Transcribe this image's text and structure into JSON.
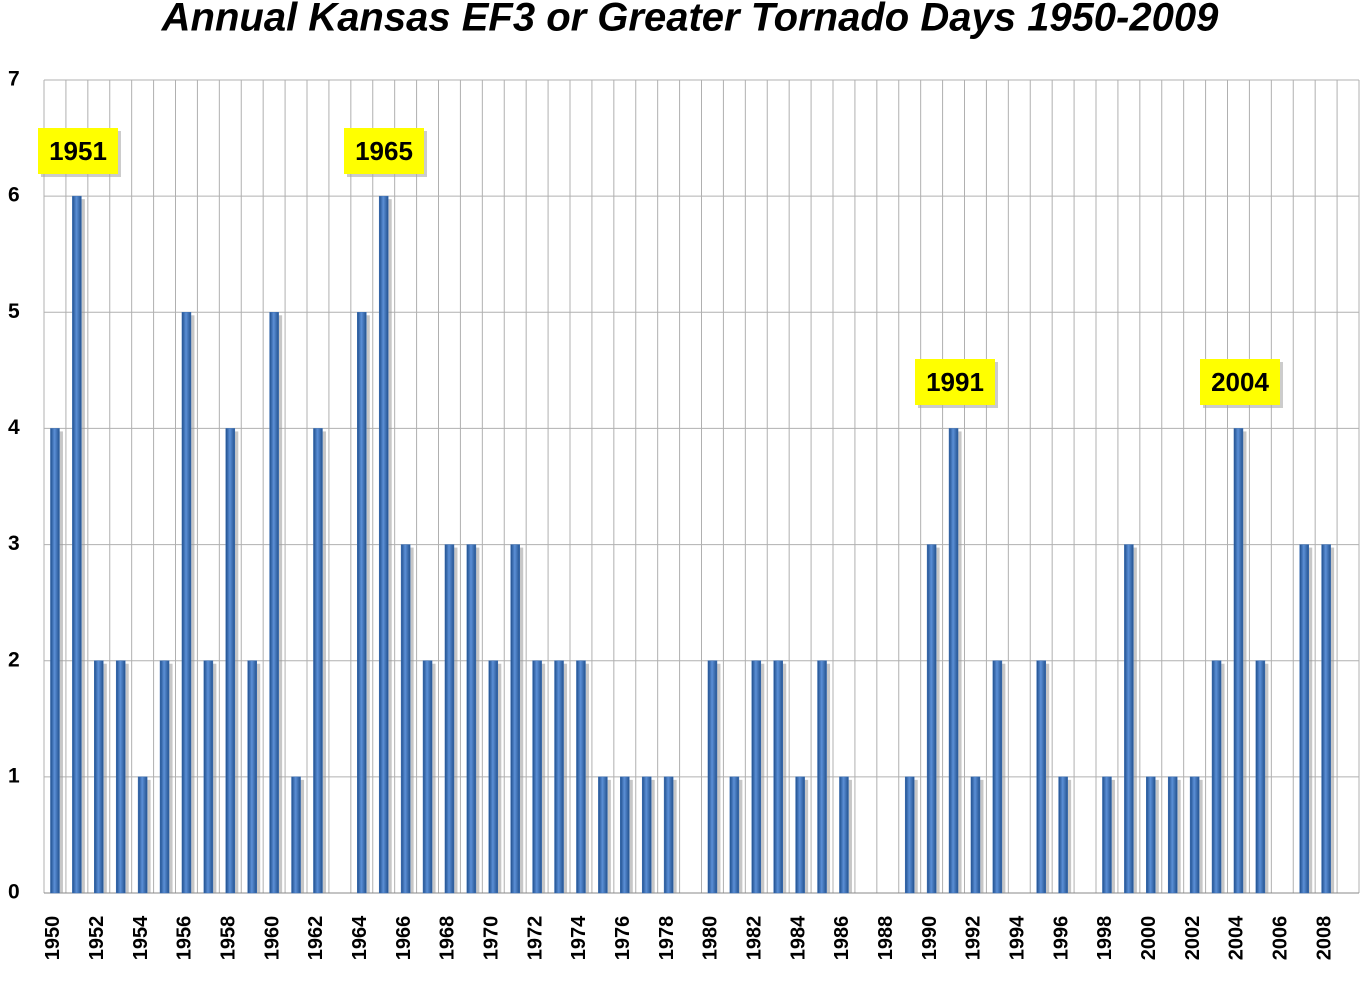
{
  "chart_data": {
    "type": "bar",
    "title": "Annual Kansas EF3 or Greater Tornado Days 1950-2009",
    "categories": [
      "1950",
      null,
      "1952",
      null,
      "1954",
      null,
      "1956",
      null,
      "1958",
      null,
      "1960",
      null,
      "1962",
      null,
      "1964",
      null,
      "1966",
      null,
      "1968",
      null,
      "1970",
      null,
      "1972",
      null,
      "1974",
      null,
      "1976",
      null,
      "1978",
      null,
      "1980",
      null,
      "1982",
      null,
      "1984",
      null,
      "1986",
      null,
      "1988",
      null,
      "1990",
      null,
      "1992",
      null,
      "1994",
      null,
      "1996",
      null,
      "1998",
      null,
      "2000",
      null,
      "2002",
      null,
      "2004",
      null,
      "2006",
      null,
      "2008",
      null
    ],
    "values": [
      4,
      6,
      2,
      2,
      1,
      2,
      5,
      2,
      4,
      2,
      5,
      1,
      4,
      0,
      5,
      6,
      3,
      2,
      3,
      3,
      2,
      3,
      2,
      2,
      2,
      1,
      1,
      1,
      1,
      0,
      2,
      1,
      2,
      2,
      1,
      2,
      1,
      0,
      0,
      1,
      3,
      4,
      1,
      2,
      0,
      2,
      1,
      0,
      1,
      3,
      1,
      1,
      1,
      2,
      4,
      2,
      0,
      3,
      3,
      0
    ],
    "color": "#3a6fb5",
    "ylim": [
      0,
      7
    ],
    "yticks": [
      0,
      1,
      2,
      3,
      4,
      5,
      6,
      7
    ],
    "grid": true,
    "annotations": [
      "1951",
      "1965",
      "1991",
      "2004"
    ]
  }
}
